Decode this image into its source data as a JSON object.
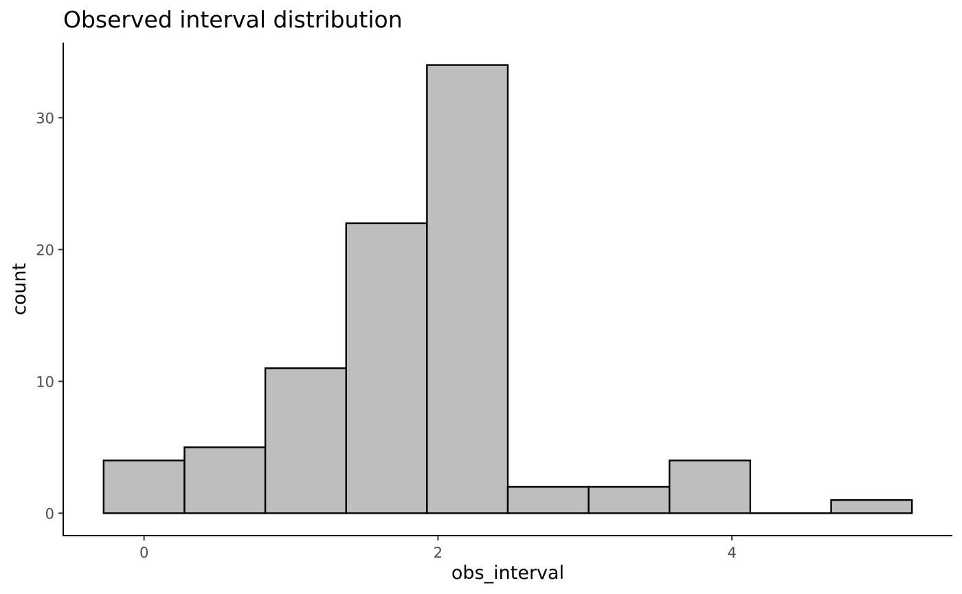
{
  "chart_data": {
    "type": "bar",
    "title": "Observed interval distribution",
    "xlabel": "obs_interval",
    "ylabel": "count",
    "bins": [
      {
        "x0": -0.275,
        "x1": 0.275,
        "count": 4
      },
      {
        "x0": 0.275,
        "x1": 0.825,
        "count": 5
      },
      {
        "x0": 0.825,
        "x1": 1.375,
        "count": 11
      },
      {
        "x0": 1.375,
        "x1": 1.925,
        "count": 22
      },
      {
        "x0": 1.925,
        "x1": 2.475,
        "count": 34
      },
      {
        "x0": 2.475,
        "x1": 3.025,
        "count": 2
      },
      {
        "x0": 3.025,
        "x1": 3.575,
        "count": 2
      },
      {
        "x0": 3.575,
        "x1": 4.125,
        "count": 4
      },
      {
        "x0": 4.125,
        "x1": 4.675,
        "count": 0
      },
      {
        "x0": 4.675,
        "x1": 5.225,
        "count": 1
      }
    ],
    "x_ticks": [
      0,
      2,
      4
    ],
    "y_ticks": [
      0,
      10,
      20,
      30
    ],
    "xlim": [
      -0.55,
      5.5
    ],
    "ylim": [
      -1.7,
      35.7
    ],
    "grid": false,
    "legend": "none",
    "colors": {
      "bar_fill": "#bebebe",
      "bar_stroke": "#000000"
    }
  }
}
